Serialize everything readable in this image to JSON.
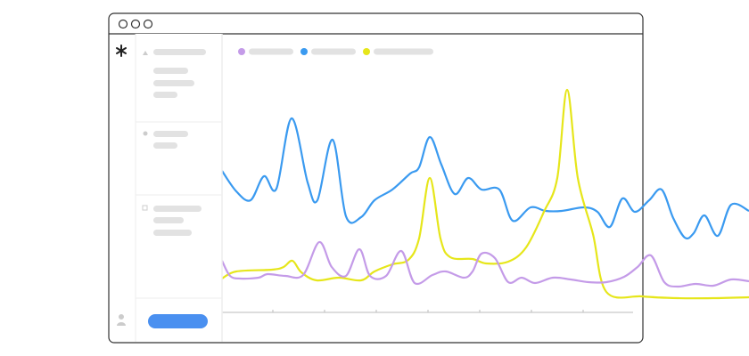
{
  "chart_data": {
    "type": "line",
    "xlim": [
      0,
      591
    ],
    "ylim": [
      0,
      260
    ],
    "xticks": [
      57,
      115,
      173,
      231,
      289,
      347,
      405
    ],
    "series": [
      {
        "color": "#3a9af0",
        "x": [
          0,
          16,
          32,
          47,
          61,
          78,
          96,
          107,
          124,
          139,
          156,
          171,
          191,
          211,
          221,
          233,
          246,
          261,
          276,
          291,
          311,
          326,
          346,
          363,
          381,
          406,
          421,
          435,
          449,
          463,
          479,
          493,
          506,
          519,
          529,
          541,
          556,
          571,
          591
        ],
        "values": [
          159,
          136,
          126,
          153,
          139,
          218,
          146,
          126,
          194,
          108,
          107,
          126,
          138,
          156,
          163,
          197,
          166,
          133,
          151,
          138,
          138,
          103,
          118,
          114,
          114,
          118,
          113,
          96,
          128,
          113,
          126,
          138,
          106,
          84,
          89,
          109,
          86,
          121,
          114
        ]
      },
      {
        "color": "#e6e61a",
        "x": [
          0,
          16,
          56,
          69,
          79,
          89,
          106,
          131,
          156,
          171,
          191,
          209,
          221,
          233,
          245,
          256,
          281,
          296,
          321,
          341,
          361,
          376,
          387,
          399,
          416,
          431,
          471,
          511,
          551,
          591
        ],
        "values": [
          38,
          46,
          48,
          51,
          58,
          45,
          36,
          39,
          36,
          46,
          54,
          59,
          83,
          151,
          83,
          62,
          60,
          55,
          57,
          73,
          113,
          151,
          250,
          151,
          88,
          23,
          18,
          16,
          16,
          17
        ]
      },
      {
        "color": "#c49be8",
        "x": [
          0,
          9,
          21,
          41,
          51,
          71,
          91,
          109,
          123,
          139,
          154,
          166,
          184,
          201,
          216,
          236,
          251,
          271,
          281,
          291,
          306,
          321,
          336,
          351,
          371,
          391,
          411,
          431,
          451,
          466,
          481,
          496,
          511,
          531,
          551,
          571,
          591
        ],
        "values": [
          58,
          41,
          38,
          39,
          43,
          41,
          42,
          79,
          51,
          41,
          71,
          41,
          41,
          69,
          33,
          42,
          46,
          39,
          46,
          66,
          61,
          34,
          39,
          33,
          39,
          37,
          34,
          34,
          40,
          51,
          64,
          34,
          29,
          32,
          30,
          37,
          35
        ]
      }
    ]
  }
}
